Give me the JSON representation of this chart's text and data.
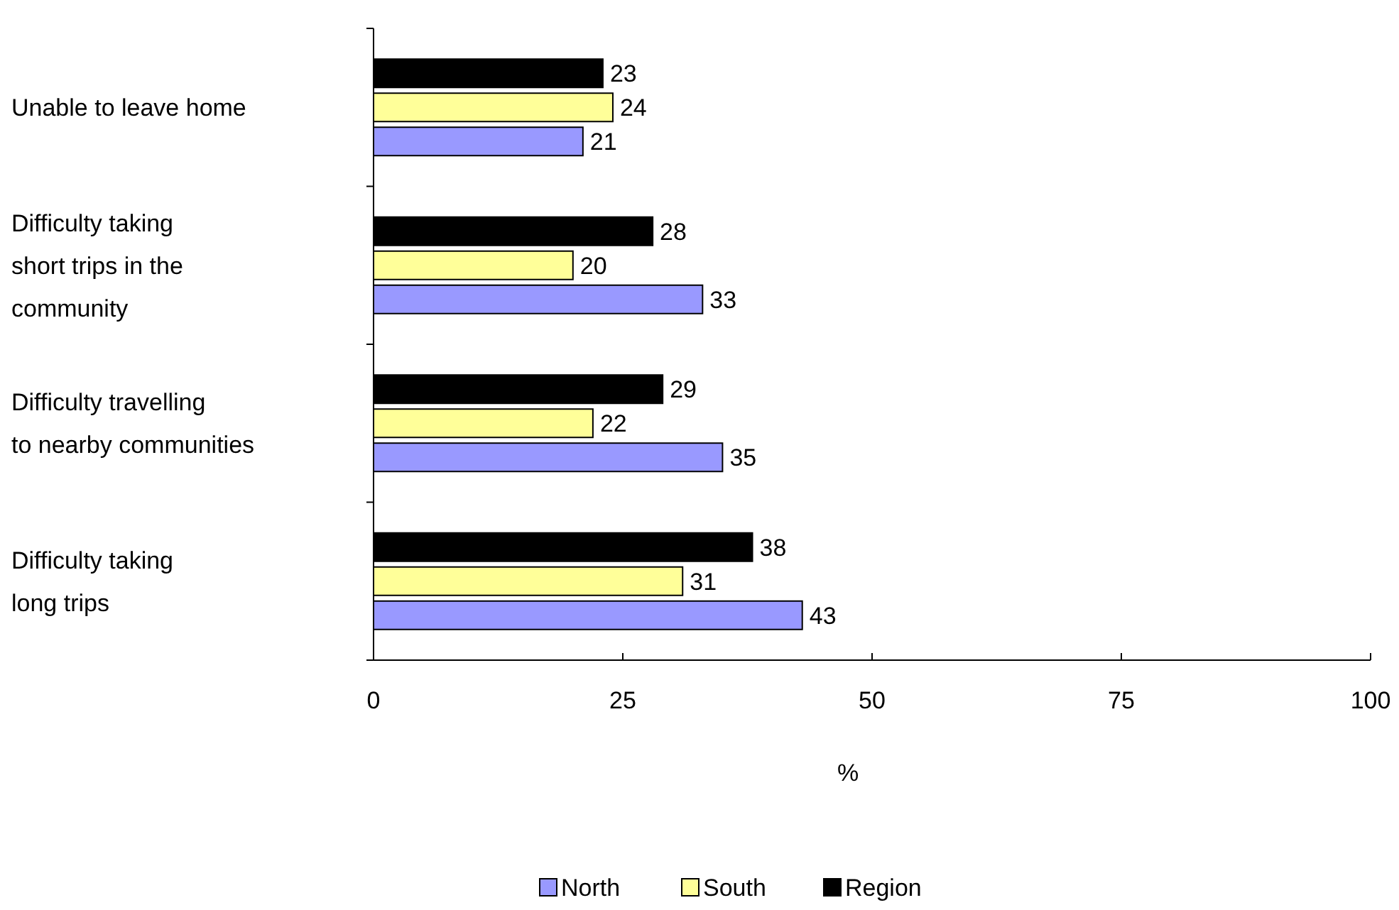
{
  "chart_data": {
    "type": "bar",
    "orientation": "horizontal",
    "xlabel": "%",
    "categories": [
      "Unable to leave home",
      "Difficulty taking short trips in the community",
      "Difficulty travelling to nearby communities",
      "Difficulty taking long trips"
    ],
    "series": [
      {
        "name": "North",
        "color": "#9999ff",
        "values": [
          21,
          33,
          35,
          43
        ]
      },
      {
        "name": "South",
        "color": "#ffff99",
        "values": [
          24,
          20,
          22,
          31
        ]
      },
      {
        "name": "Region",
        "color": "#000000",
        "values": [
          23,
          28,
          29,
          38
        ]
      }
    ],
    "xlim": [
      0,
      100
    ],
    "xticks": [
      0,
      25,
      50,
      75,
      100
    ],
    "data_labels": true,
    "legend": "bottom",
    "grid": false
  }
}
